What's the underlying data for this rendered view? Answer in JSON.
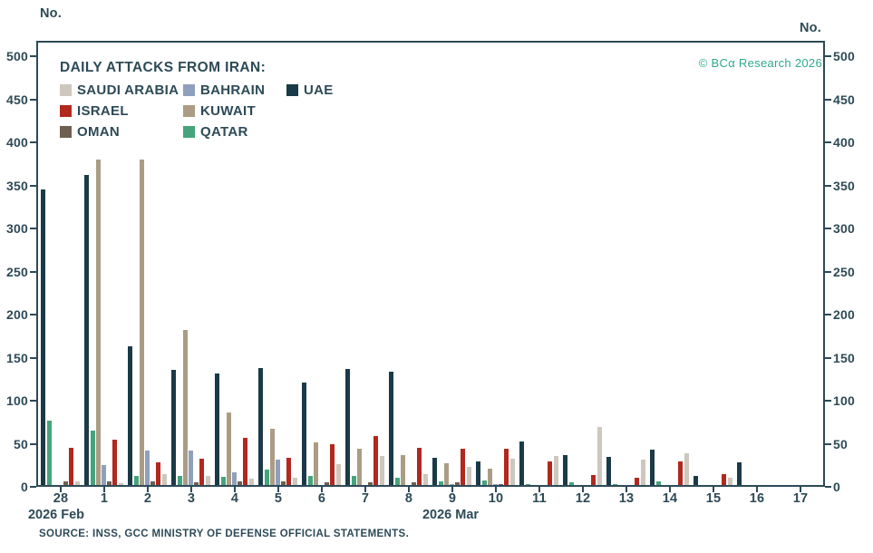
{
  "axis_unit_left": "No.",
  "axis_unit_right": "No.",
  "copyright": "© BCα Research 2026",
  "source": "SOURCE: INSS, GCC MINISTRY OF DEFENSE OFFICIAL STATEMENTS.",
  "colors": {
    "text": "#2d4a57",
    "axis": "#2d4a57",
    "copyright_green": "#2fa98c"
  },
  "legend": {
    "title": "DAILY ATTACKS FROM IRAN:",
    "entries": [
      {
        "label": "SAUDI ARABIA",
        "color": "#cdc7bd"
      },
      {
        "label": "BAHRAIN",
        "color": "#8fa0bc"
      },
      {
        "label": "UAE",
        "color": "#1b3a47"
      },
      {
        "label": "ISRAEL",
        "color": "#b2281e"
      },
      {
        "label": "KUWAIT",
        "color": "#ab9c85"
      },
      {
        "label": "OMAN",
        "color": "#6f5f50"
      },
      {
        "label": "QATAR",
        "color": "#46a47c"
      }
    ]
  },
  "chart_data": {
    "type": "bar",
    "title": "DAILY ATTACKS FROM IRAN:",
    "categories": [
      "28",
      "1",
      "2",
      "3",
      "4",
      "5",
      "6",
      "7",
      "8",
      "9",
      "10",
      "11",
      "12",
      "13",
      "14",
      "15",
      "16",
      "17"
    ],
    "x_axis_month_left": "2026 Feb",
    "x_axis_month_right": "2026 Mar",
    "ylabel": "No.",
    "ylim": [
      0,
      500
    ],
    "yticks": [
      0,
      50,
      100,
      150,
      200,
      250,
      300,
      350,
      400,
      450,
      500
    ],
    "grid": false,
    "legend_position": "top-left",
    "series": [
      {
        "name": "UAE",
        "color": "#1b3a47",
        "values": [
          345,
          362,
          163,
          136,
          132,
          138,
          121,
          137,
          134,
          34,
          29,
          53,
          37,
          35,
          43,
          13,
          28,
          0
        ]
      },
      {
        "name": "QATAR",
        "color": "#46a47c",
        "values": [
          77,
          65,
          13,
          13,
          12,
          20,
          13,
          13,
          11,
          6,
          7,
          3,
          5,
          3,
          6,
          0,
          0,
          0
        ]
      },
      {
        "name": "KUWAIT",
        "color": "#ab9c85",
        "values": [
          0,
          380,
          380,
          182,
          86,
          67,
          52,
          44,
          37,
          27,
          21,
          2,
          2,
          0,
          0,
          0,
          0,
          0
        ]
      },
      {
        "name": "BAHRAIN",
        "color": "#8fa0bc",
        "values": [
          0,
          25,
          42,
          42,
          17,
          32,
          0,
          0,
          2,
          3,
          3,
          2,
          2,
          2,
          0,
          0,
          0,
          0
        ]
      },
      {
        "name": "OMAN",
        "color": "#6f5f50",
        "values": [
          6,
          6,
          6,
          5,
          6,
          6,
          5,
          5,
          5,
          5,
          3,
          2,
          2,
          2,
          2,
          2,
          0,
          0
        ]
      },
      {
        "name": "ISRAEL",
        "color": "#b2281e",
        "values": [
          45,
          55,
          28,
          33,
          57,
          34,
          50,
          59,
          45,
          44,
          44,
          29,
          14,
          11,
          30,
          15,
          0,
          0
        ]
      },
      {
        "name": "SAUDI ARABIA",
        "color": "#cdc7bd",
        "values": [
          6,
          4,
          15,
          13,
          10,
          11,
          26,
          36,
          15,
          23,
          33,
          36,
          70,
          32,
          39,
          11,
          0,
          0
        ]
      }
    ]
  }
}
